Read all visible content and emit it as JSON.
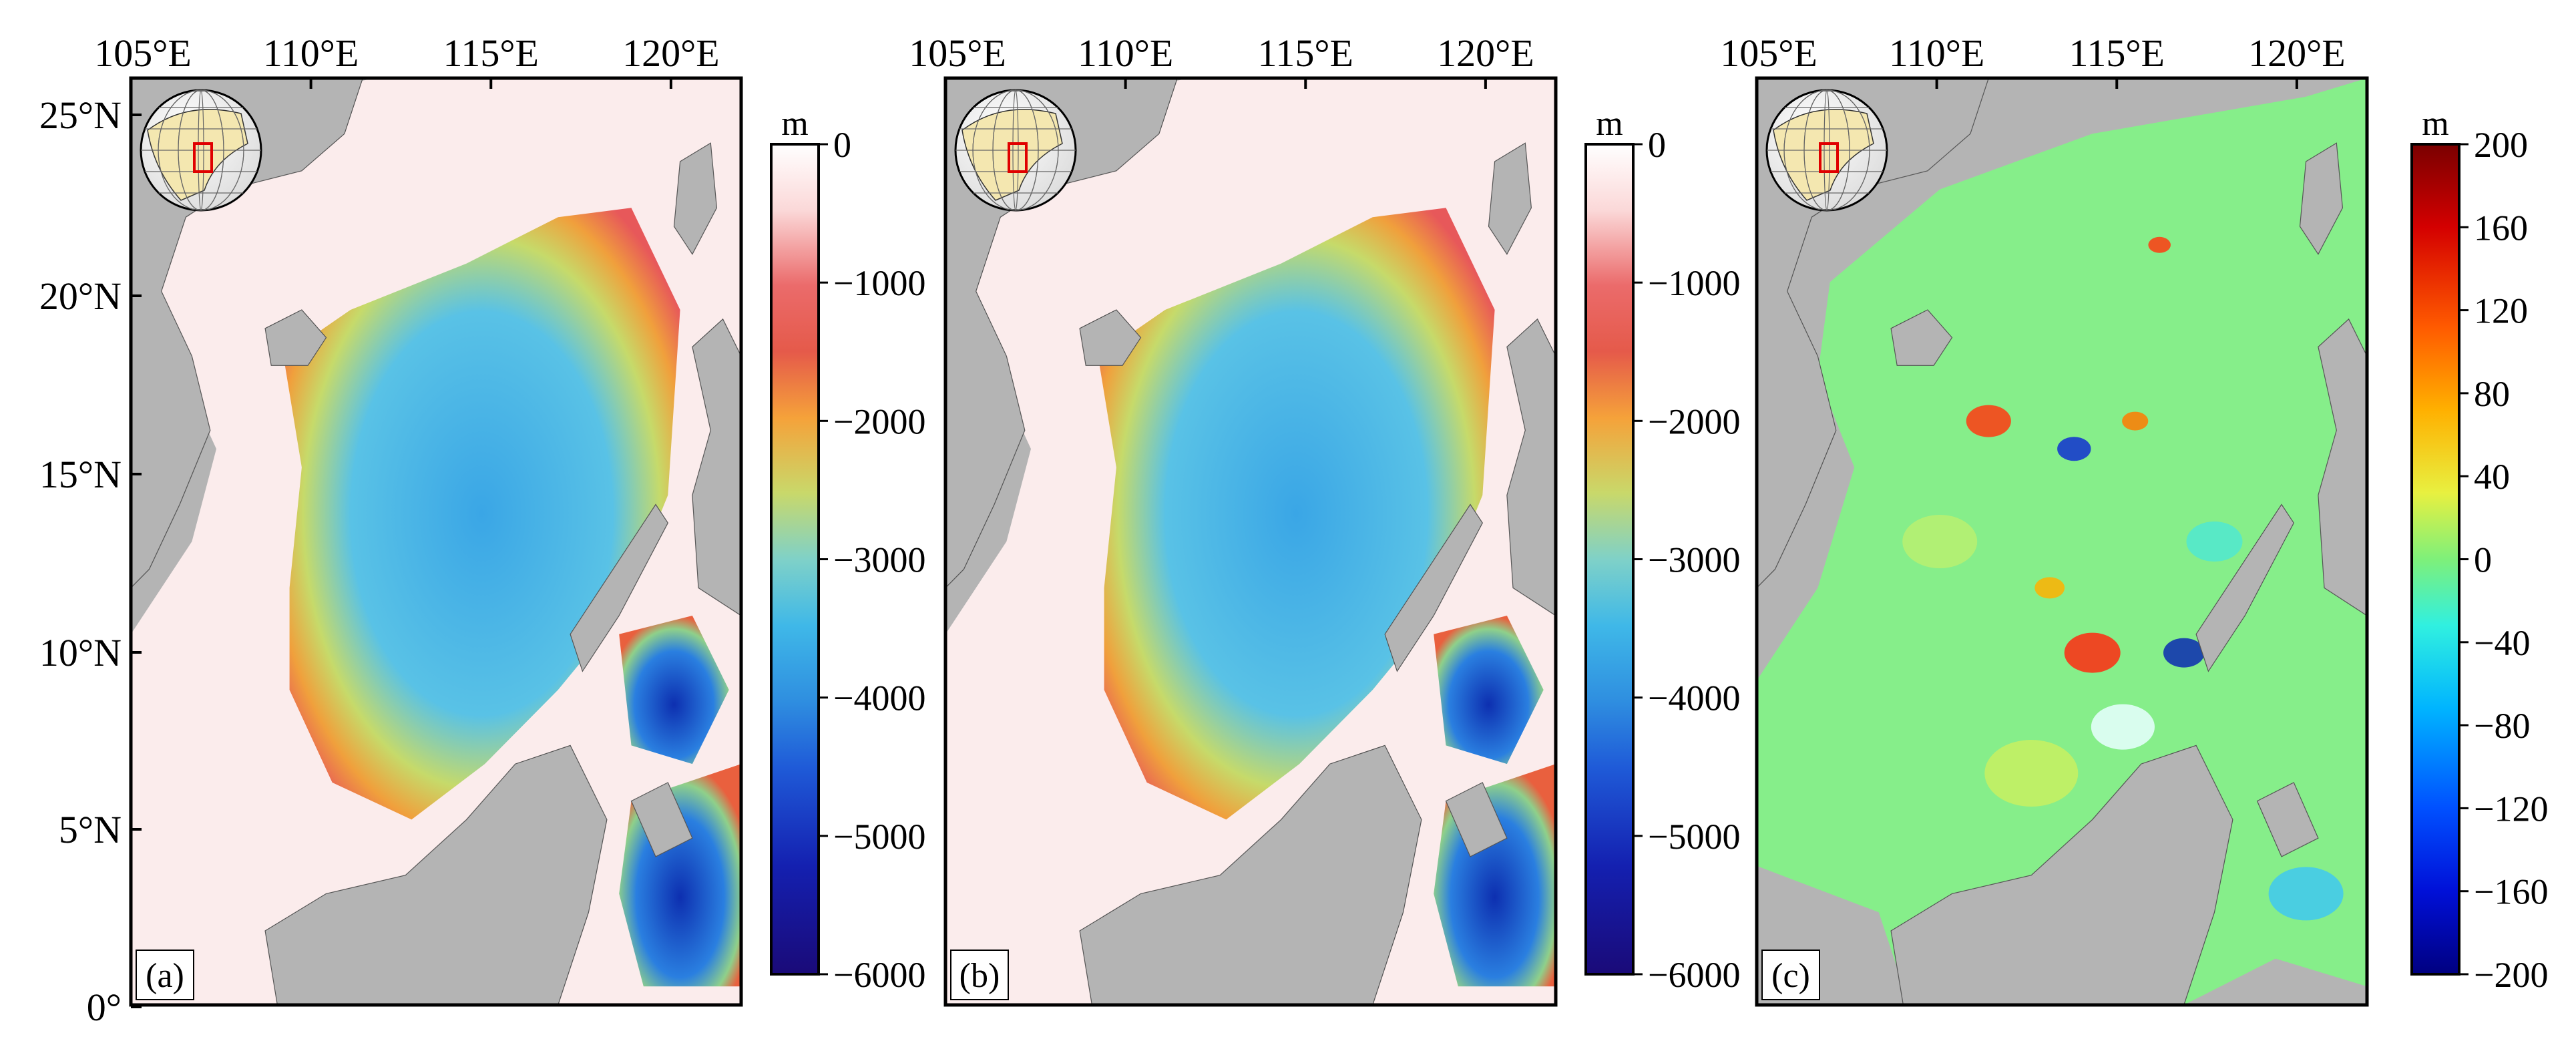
{
  "figure": {
    "panels": [
      {
        "id": "a",
        "panel_label": "(a)",
        "x_ticks": [
          "105°E",
          "110°E",
          "115°E",
          "120°E"
        ],
        "y_ticks": [
          "25°N",
          "20°N",
          "15°N",
          "10°N",
          "5°N",
          "0°"
        ],
        "show_y_ticks": true,
        "inset_globe": true,
        "map_kind": "bathymetry",
        "colorbar": {
          "unit": "m",
          "ticks": [
            "0",
            "−1000",
            "−2000",
            "−3000",
            "−4000",
            "−5000",
            "−6000"
          ],
          "range": [
            -6000,
            0
          ],
          "palette": "bathymetry"
        }
      },
      {
        "id": "b",
        "panel_label": "(b)",
        "x_ticks": [
          "105°E",
          "110°E",
          "115°E",
          "120°E"
        ],
        "y_ticks": [],
        "show_y_ticks": false,
        "inset_globe": true,
        "map_kind": "bathymetry",
        "colorbar": {
          "unit": "m",
          "ticks": [
            "0",
            "−1000",
            "−2000",
            "−3000",
            "−4000",
            "−5000",
            "−6000"
          ],
          "range": [
            -6000,
            0
          ],
          "palette": "bathymetry"
        }
      },
      {
        "id": "c",
        "panel_label": "(c)",
        "x_ticks": [
          "105°E",
          "110°E",
          "115°E",
          "120°E"
        ],
        "y_ticks": [],
        "show_y_ticks": false,
        "inset_globe": true,
        "map_kind": "difference",
        "colorbar": {
          "unit": "m",
          "ticks": [
            "200",
            "160",
            "120",
            "80",
            "40",
            "0",
            "−40",
            "−80",
            "−120",
            "−160",
            "−200"
          ],
          "range": [
            -200,
            200
          ],
          "palette": "jet"
        }
      }
    ],
    "colors": {
      "land": "#b4b4b4",
      "shelf": "#fbecec",
      "frame": "#000000",
      "globe_land": "#f4e7b0",
      "globe_box": "#e00000"
    }
  }
}
